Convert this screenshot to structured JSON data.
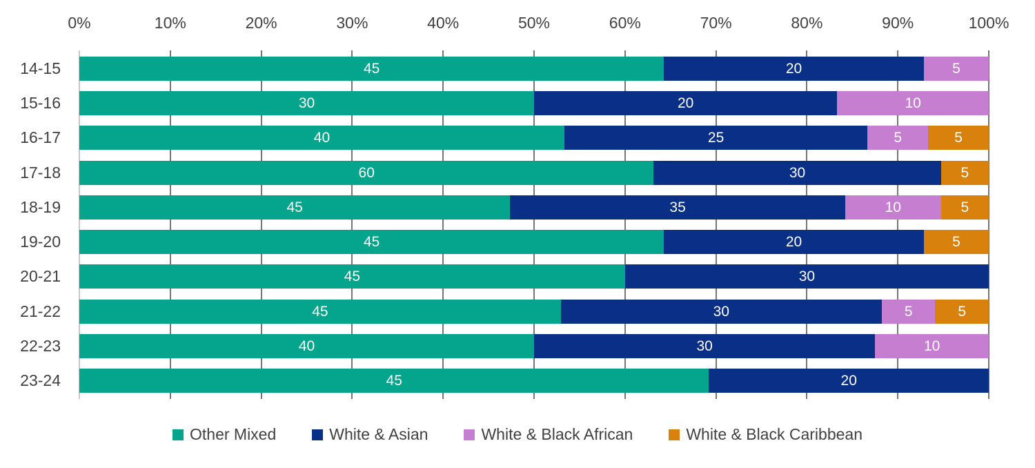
{
  "chart_data": {
    "type": "bar",
    "variant": "horizontal-100pct-stacked",
    "title": "",
    "categories": [
      "14-15",
      "15-16",
      "16-17",
      "17-18",
      "18-19",
      "19-20",
      "20-21",
      "21-22",
      "22-23",
      "23-24"
    ],
    "series": [
      {
        "name": "Other Mixed",
        "color": "#05a48c",
        "values": [
          45,
          30,
          40,
          60,
          45,
          45,
          45,
          45,
          40,
          45
        ]
      },
      {
        "name": "White & Asian",
        "color": "#0a2f86",
        "values": [
          20,
          20,
          25,
          30,
          35,
          20,
          30,
          30,
          30,
          20
        ]
      },
      {
        "name": "White & Black African",
        "color": "#c67ed1",
        "values": [
          5,
          10,
          5,
          0,
          10,
          0,
          0,
          5,
          10,
          0
        ]
      },
      {
        "name": "White & Black Caribbean",
        "color": "#d8820d",
        "values": [
          0,
          0,
          5,
          5,
          5,
          5,
          0,
          5,
          0,
          0
        ]
      }
    ],
    "x_axis": {
      "position": "top",
      "range": [
        0,
        100
      ],
      "tick_step": 10,
      "ticks": [
        "0%",
        "10%",
        "20%",
        "30%",
        "40%",
        "50%",
        "60%",
        "70%",
        "80%",
        "90%",
        "100%"
      ]
    },
    "bar_labels": "segment raw values, white, centered; segments sized as percent of row total",
    "legend": {
      "position": "bottom",
      "entries": [
        "Other Mixed",
        "White & Asian",
        "White & Black African",
        "White & Black Caribbean"
      ]
    },
    "grid": true
  },
  "style": {
    "background": "#ffffff",
    "grid_color": "#757575",
    "zero_axis_line_color": "#c9c9c9",
    "axis_text_color": "#404040",
    "bar_label_color": "#ffffff"
  }
}
